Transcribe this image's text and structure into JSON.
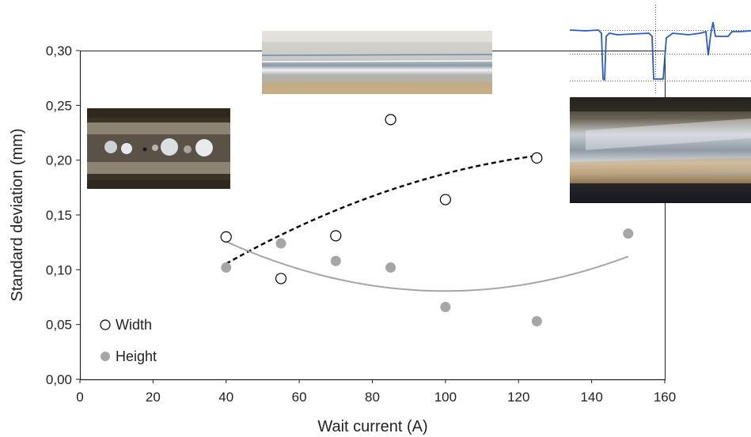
{
  "chart_data": {
    "type": "scatter",
    "xlabel": "Wait current (A)",
    "ylabel": "Standard deviation  (mm)",
    "xlim": [
      0,
      160
    ],
    "ylim": [
      0,
      0.3
    ],
    "x_ticks": [
      "0",
      "20",
      "40",
      "60",
      "80",
      "100",
      "120",
      "140",
      "160"
    ],
    "y_ticks": [
      "0,00",
      "0,05",
      "0,10",
      "0,15",
      "0,20",
      "0,25",
      "0,30"
    ],
    "grid": false,
    "legend_position": "bottom-left",
    "series": [
      {
        "name": "Width",
        "marker": "open-circle",
        "color": "#000000",
        "x": [
          40,
          55,
          70,
          85,
          100,
          125
        ],
        "y": [
          0.13,
          0.092,
          0.131,
          0.237,
          0.164,
          0.202
        ],
        "trendline": {
          "style": "dashed",
          "color": "#000000",
          "x_range": [
            40,
            125
          ]
        }
      },
      {
        "name": "Height",
        "marker": "filled-circle",
        "color": "#a6a6a6",
        "x": [
          40,
          55,
          70,
          85,
          100,
          125,
          150
        ],
        "y": [
          0.102,
          0.124,
          0.108,
          0.102,
          0.066,
          0.053,
          0.133
        ],
        "trendline": {
          "style": "solid",
          "color": "#a6a6a6",
          "x_range": [
            40,
            150
          ]
        }
      }
    ],
    "inset_images": [
      "weld-bead-photo-beaded",
      "weld-bead-photo-smooth",
      "weld-profile-signal-plot",
      "weld-bead-photo-wide"
    ]
  }
}
